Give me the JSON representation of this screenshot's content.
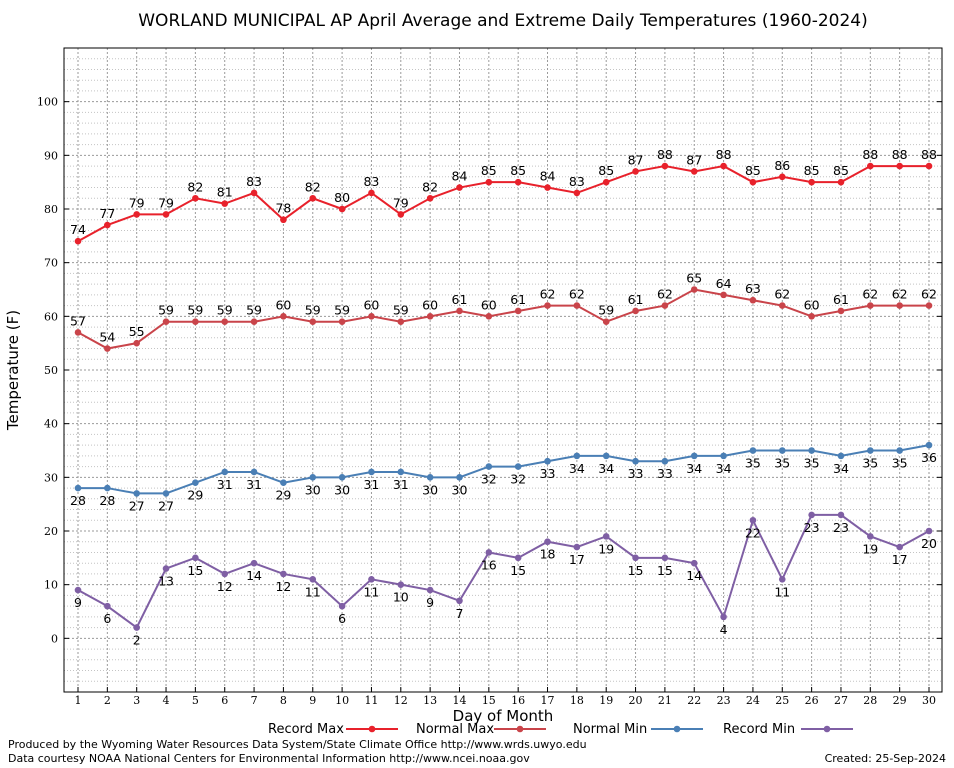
{
  "chart_data": {
    "type": "line",
    "title": "WORLAND MUNICIPAL AP April Average and Extreme Daily Temperatures (1960-2024)",
    "xlabel": "Day of Month",
    "ylabel": "Temperature (F)",
    "x": [
      1,
      2,
      3,
      4,
      5,
      6,
      7,
      8,
      9,
      10,
      11,
      12,
      13,
      14,
      15,
      16,
      17,
      18,
      19,
      20,
      21,
      22,
      23,
      24,
      25,
      26,
      27,
      28,
      29,
      30
    ],
    "ylim": [
      -10,
      110
    ],
    "yticks": [
      0,
      10,
      20,
      30,
      40,
      50,
      60,
      70,
      80,
      90,
      100
    ],
    "grid": true,
    "legend_position": "bottom",
    "series": [
      {
        "name": "Record Max",
        "color": "#e8212b",
        "values": [
          74,
          77,
          79,
          79,
          82,
          81,
          83,
          78,
          82,
          80,
          83,
          79,
          82,
          84,
          85,
          85,
          84,
          83,
          85,
          87,
          88,
          87,
          88,
          85,
          86,
          85,
          85,
          88,
          88,
          88
        ]
      },
      {
        "name": "Normal Max",
        "color": "#c9444a",
        "values": [
          57,
          54,
          55,
          59,
          59,
          59,
          59,
          60,
          59,
          59,
          60,
          59,
          60,
          61,
          60,
          61,
          62,
          62,
          59,
          61,
          62,
          65,
          64,
          63,
          62,
          60,
          61,
          62,
          62,
          62
        ]
      },
      {
        "name": "Normal Min",
        "color": "#4a7fb5",
        "values": [
          28,
          28,
          27,
          27,
          29,
          31,
          31,
          29,
          30,
          30,
          31,
          31,
          30,
          30,
          32,
          32,
          33,
          34,
          34,
          33,
          33,
          34,
          34,
          35,
          35,
          35,
          34,
          35,
          35,
          36
        ]
      },
      {
        "name": "Record Min",
        "color": "#7f5fa4",
        "values": [
          9,
          6,
          2,
          13,
          15,
          12,
          14,
          12,
          11,
          6,
          11,
          10,
          9,
          7,
          16,
          15,
          18,
          17,
          19,
          15,
          15,
          14,
          4,
          22,
          11,
          23,
          23,
          19,
          17,
          20
        ]
      }
    ]
  },
  "footer": {
    "produced_by": "Produced by the Wyoming Water Resources Data System/State Climate Office http://www.wrds.uwyo.edu",
    "courtesy": "Data courtesy NOAA National Centers for Environmental Information http://www.ncei.noaa.gov",
    "created": "Created:  25-Sep-2024"
  }
}
